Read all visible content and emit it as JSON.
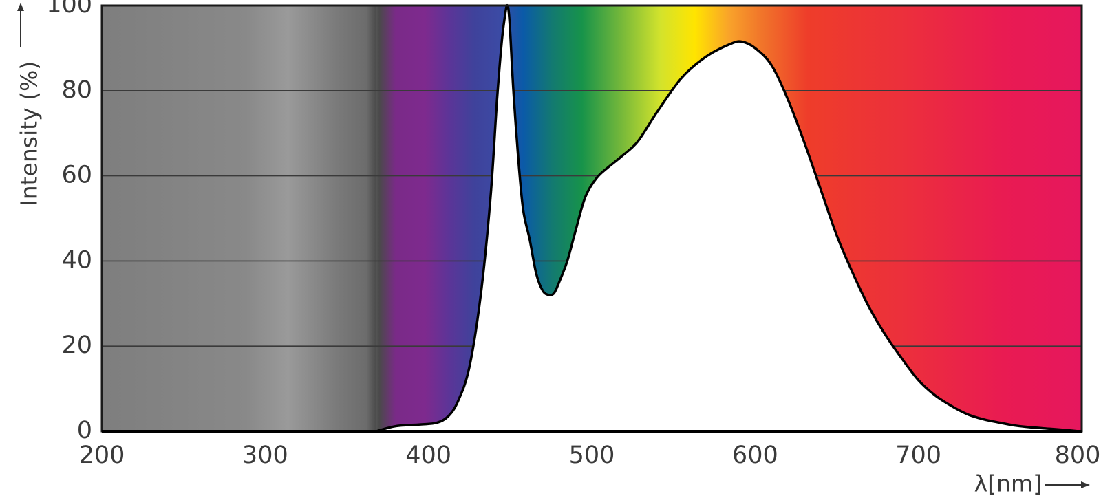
{
  "chart_data": {
    "type": "area",
    "xlabel": "λ[nm]",
    "ylabel": "Intensity (%)",
    "xlim": [
      200,
      800
    ],
    "ylim": [
      0,
      100
    ],
    "xticks": [
      200,
      300,
      400,
      500,
      600,
      700,
      800
    ],
    "yticks": [
      0,
      20,
      40,
      60,
      80,
      100
    ],
    "grid": "horizontal",
    "legend": "none",
    "background": "visible-spectrum color gradient by wavelength (grey in UV region, violet → blue → green → yellow → orange → red → magenta)",
    "series": [
      {
        "x": [
          368,
          380,
          395,
          405,
          412,
          418,
          425,
          432,
          438,
          442,
          445,
          447,
          448,
          449,
          450,
          452,
          455,
          458,
          462,
          466,
          470,
          474,
          477,
          480,
          485,
          490,
          496,
          503,
          510,
          518,
          528,
          540,
          555,
          570,
          585,
          592,
          600,
          610,
          620,
          630,
          640,
          650,
          660,
          670,
          680,
          690,
          700,
          710,
          720,
          730,
          740,
          750,
          760,
          770,
          780,
          790,
          798
        ],
        "y": [
          0,
          1.2,
          1.6,
          2,
          3.5,
          7,
          15,
          32,
          55,
          78,
          92,
          98,
          100,
          99,
          94,
          80,
          64,
          52,
          45,
          37,
          33,
          32,
          32.5,
          35,
          40,
          47,
          55,
          59.5,
          62,
          64.5,
          68,
          75,
          83,
          88,
          91,
          91.5,
          90,
          86,
          78,
          68,
          57,
          46,
          37,
          29,
          22.5,
          17,
          12,
          8.5,
          6,
          4,
          2.8,
          2,
          1.3,
          0.9,
          0.6,
          0.3,
          0
        ]
      }
    ]
  }
}
